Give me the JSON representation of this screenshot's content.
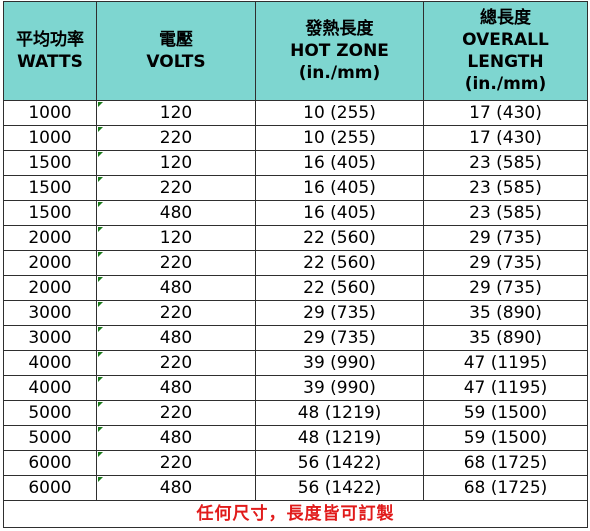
{
  "table": {
    "headers": [
      {
        "zh": "平均功率",
        "en": [
          "WATTS"
        ]
      },
      {
        "zh": "電壓",
        "en": [
          "VOLTS"
        ]
      },
      {
        "zh": "發熱長度",
        "en": [
          "HOT ZONE",
          "(in./mm)"
        ]
      },
      {
        "zh": "總長度",
        "en": [
          "OVERALL",
          "LENGTH",
          "(in./mm)"
        ]
      }
    ],
    "rows": [
      [
        "1000",
        "120",
        "10 (255)",
        "17 (430)"
      ],
      [
        "1000",
        "220",
        "10 (255)",
        "17 (430)"
      ],
      [
        "1500",
        "120",
        "16 (405)",
        "23 (585)"
      ],
      [
        "1500",
        "220",
        "16 (405)",
        "23 (585)"
      ],
      [
        "1500",
        "480",
        "16 (405)",
        "23 (585)"
      ],
      [
        "2000",
        "120",
        "22 (560)",
        "29 (735)"
      ],
      [
        "2000",
        "220",
        "22 (560)",
        "29 (735)"
      ],
      [
        "2000",
        "480",
        "22 (560)",
        "29 (735)"
      ],
      [
        "3000",
        "220",
        "29 (735)",
        "35 (890)"
      ],
      [
        "3000",
        "480",
        "29 (735)",
        "35 (890)"
      ],
      [
        "4000",
        "220",
        "39 (990)",
        "47 (1195)"
      ],
      [
        "4000",
        "480",
        "39 (990)",
        "47 (1195)"
      ],
      [
        "5000",
        "220",
        "48 (1219)",
        "59 (1500)"
      ],
      [
        "5000",
        "480",
        "48 (1219)",
        "59 (1500)"
      ],
      [
        "6000",
        "220",
        "56 (1422)",
        "68 (1725)"
      ],
      [
        "6000",
        "480",
        "56 (1422)",
        "68 (1725)"
      ]
    ],
    "footer": "任何尺寸，長度皆可訂製"
  },
  "colors": {
    "header_background": "#7ed6d0",
    "footer_text": "#e11b1b",
    "cell_marker": "#1a7a1a",
    "border": "#2f2f2f"
  }
}
